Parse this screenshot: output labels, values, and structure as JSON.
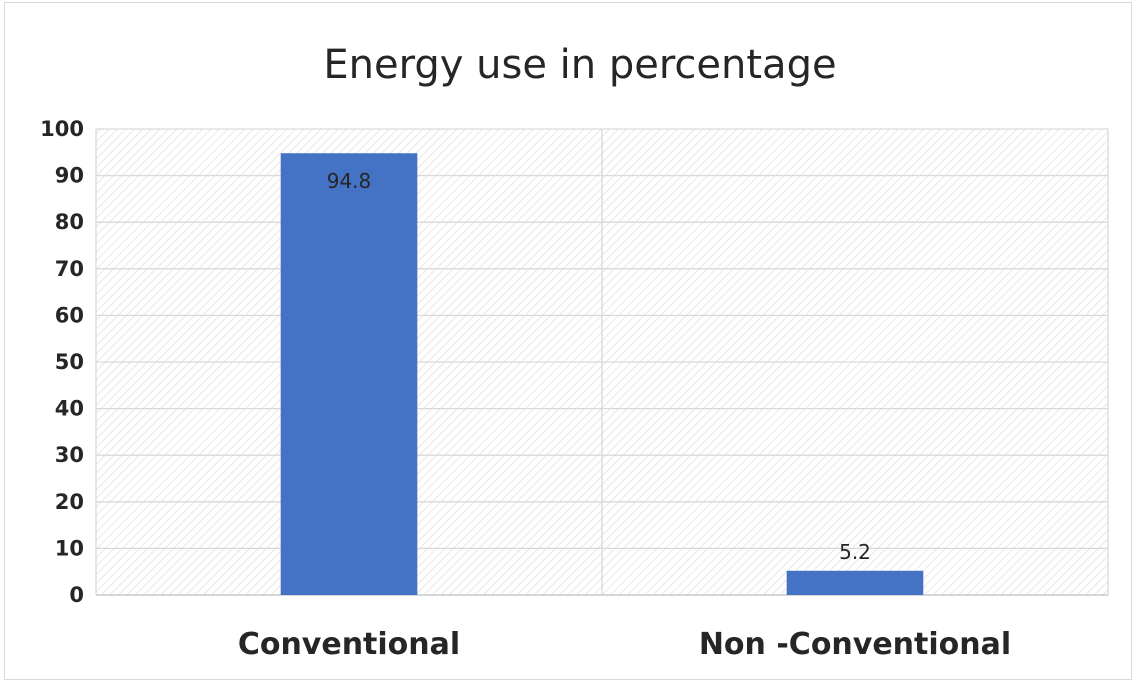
{
  "chart_data": {
    "type": "bar",
    "title": "Energy use in percentage",
    "categories": [
      "Conventional",
      "Non -Conventional"
    ],
    "values": [
      94.8,
      5.2
    ],
    "data_labels": [
      "94.8",
      "5.2"
    ],
    "xlabel": "",
    "ylabel": "",
    "ylim": [
      0,
      100
    ],
    "ytick_step": 10,
    "grid": true,
    "legend": "none",
    "bar_color": "#4472c4",
    "gridline_color": "#d9d9d9",
    "plot_pattern": "diagonal-hatch"
  }
}
